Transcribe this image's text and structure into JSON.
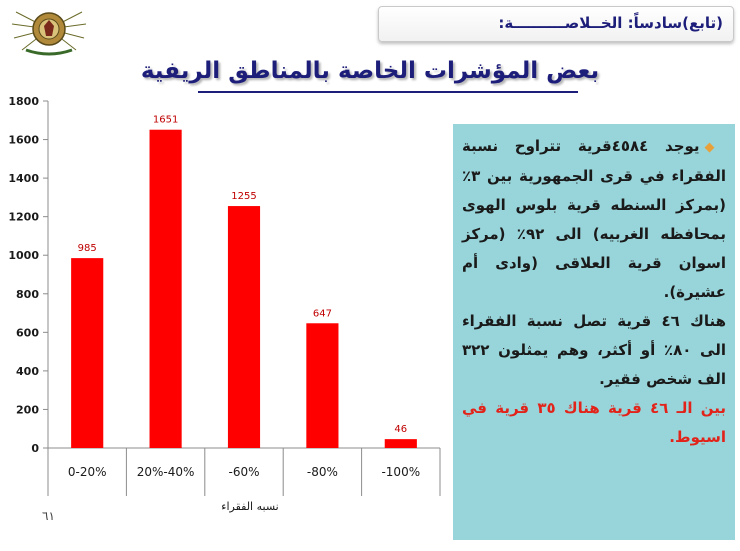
{
  "header": {
    "text": "(تابع)سادساً: الخــلاصــــــــــة:"
  },
  "title": "بعض المؤشرات الخاصة بالمناطق الريفية",
  "page_number": "٦١",
  "colors": {
    "bar": "#ff0000",
    "value_label": "#c00000",
    "title": "#1d1d7a",
    "panel_bg": "#98d5da",
    "highlight": "#e2231a"
  },
  "text_panel": {
    "bullet_icon": "diamond-bullet",
    "para1": "يوجد ٤٥٨٤قرية تتراوح نسبة الفقراء في قرى الجمهورية بين ٣٪ (بمركز السنطه قرية بلوس الهوى بمحافظه الغربيه) الى ٩٢٪ (مركز اسوان قرية العلاقى (وادى أم عشيرة).",
    "para2": "هناك ٤٦ قرية تصل نسبة الفقراء الى ٨٠٪ أو أكثر، وهم يمثلون ٣٢٢ الف شخص فقير.",
    "para3": "بين الـ ٤٦ قرية هناك ٣٥ قرية في اسيوط."
  },
  "chart_data": {
    "type": "bar",
    "categories": [
      "0-20%",
      "20%-40%",
      "-60%",
      "-80%",
      "-100%"
    ],
    "values": [
      985,
      1651,
      1255,
      647,
      46
    ],
    "xlabel": "نسبه الفقراء",
    "ylabel": "",
    "ylim": [
      0,
      1800
    ],
    "yticks": [
      0,
      200,
      400,
      600,
      800,
      1000,
      1200,
      1400,
      1600,
      1800
    ],
    "grid": false,
    "legend": "none"
  }
}
